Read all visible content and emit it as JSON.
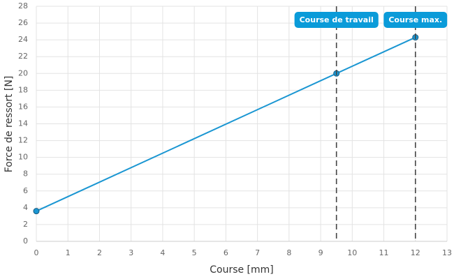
{
  "chart_data": {
    "type": "line",
    "xlabel": "Course [mm]",
    "ylabel": "Force de ressort [N]",
    "x": [
      0,
      9.5,
      12
    ],
    "series": [
      {
        "color": "#1a96d2",
        "values": [
          3.6,
          20,
          24.3
        ]
      }
    ],
    "xlim": [
      0,
      13
    ],
    "xticks": [
      0,
      1,
      2,
      3,
      4,
      5,
      6,
      7,
      8,
      9,
      10,
      11,
      12,
      13
    ],
    "ylim": [
      0,
      28
    ],
    "yticks": [
      0,
      2,
      4,
      6,
      8,
      10,
      12,
      14,
      16,
      18,
      20,
      22,
      24,
      26,
      28
    ],
    "grid": true,
    "annotations": [
      {
        "x": 9.5,
        "label": "Course de travail"
      },
      {
        "x": 12,
        "label": "Course max."
      }
    ]
  }
}
